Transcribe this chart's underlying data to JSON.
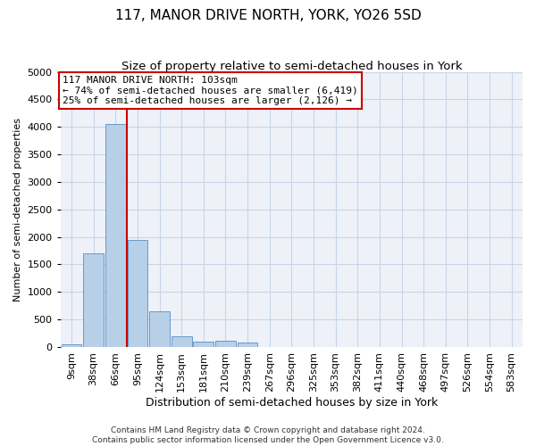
{
  "title": "117, MANOR DRIVE NORTH, YORK, YO26 5SD",
  "subtitle": "Size of property relative to semi-detached houses in York",
  "xlabel": "Distribution of semi-detached houses by size in York",
  "ylabel": "Number of semi-detached properties",
  "footer_line1": "Contains HM Land Registry data © Crown copyright and database right 2024.",
  "footer_line2": "Contains public sector information licensed under the Open Government Licence v3.0.",
  "bar_labels": [
    "9sqm",
    "38sqm",
    "66sqm",
    "95sqm",
    "124sqm",
    "153sqm",
    "181sqm",
    "210sqm",
    "239sqm",
    "267sqm",
    "296sqm",
    "325sqm",
    "353sqm",
    "382sqm",
    "411sqm",
    "440sqm",
    "468sqm",
    "497sqm",
    "526sqm",
    "554sqm",
    "583sqm"
  ],
  "bar_values": [
    50,
    1700,
    4050,
    1950,
    650,
    200,
    100,
    110,
    75,
    0,
    0,
    0,
    0,
    0,
    0,
    0,
    0,
    0,
    0,
    0,
    0
  ],
  "bar_color": "#b8cfe8",
  "bar_edge_color": "#6699cc",
  "property_line_color": "#cc0000",
  "property_line_x": 2.5,
  "annotation_line1": "117 MANOR DRIVE NORTH: 103sqm",
  "annotation_line2": "← 74% of semi-detached houses are smaller (6,419)",
  "annotation_line3": "25% of semi-detached houses are larger (2,126) →",
  "annotation_box_facecolor": "#ffffff",
  "annotation_box_edgecolor": "#cc0000",
  "ylim": [
    0,
    5000
  ],
  "yticks": [
    0,
    500,
    1000,
    1500,
    2000,
    2500,
    3000,
    3500,
    4000,
    4500,
    5000
  ],
  "grid_color": "#c8d4e8",
  "plot_bg_color": "#eef2f8",
  "title_fontsize": 11,
  "subtitle_fontsize": 9.5,
  "ylabel_fontsize": 8,
  "xlabel_fontsize": 9,
  "tick_fontsize": 8,
  "annotation_fontsize": 8,
  "footer_fontsize": 6.5
}
